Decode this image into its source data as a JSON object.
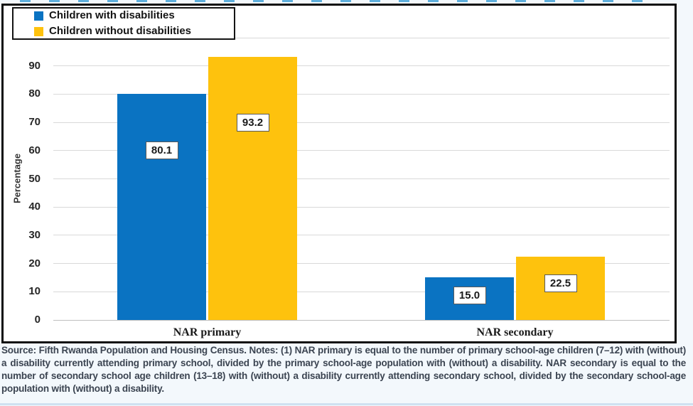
{
  "chart_data": {
    "type": "bar",
    "title": "",
    "categories": [
      "NAR primary",
      "NAR secondary"
    ],
    "series": [
      {
        "name": "Children with disabilities",
        "color": "#0a73c2",
        "values": [
          80.1,
          15.0
        ],
        "data_labels": [
          "80.1",
          "15.0"
        ]
      },
      {
        "name": "Children without disabilities",
        "color": "#fec20d",
        "values": [
          93.2,
          22.5
        ],
        "data_labels": [
          "93.2",
          "22.5"
        ]
      }
    ],
    "xlabel": "",
    "ylabel": "Percentage",
    "ylim": [
      0,
      100
    ],
    "yticks": [
      0,
      10,
      20,
      30,
      40,
      50,
      60,
      70,
      80,
      90
    ],
    "grid": true,
    "legend_position": "top-left"
  },
  "source_note": "Source: Fifth Rwanda Population and Housing Census. Notes: (1) NAR primary is equal to the number of primary school-age children (7–12) with (without) a disability currently attending primary school, divided by the primary school-age population with (without) a disability. NAR secondary is equal to the number of secondary school age children (13–18) with (without) a disability currently attending secondary school, divided by the secondary school-age population with (without) a disability.",
  "colors": {
    "series_blue": "#0a73c2",
    "series_yellow": "#fec20d",
    "gridline": "#d9d9d9",
    "axis_line": "#bfbfbf",
    "figure_border": "#0d0d0d",
    "data_label_border": "#595959",
    "page_background": "#f3f8fc",
    "caption_remnant_blue": "#2d96d2"
  }
}
